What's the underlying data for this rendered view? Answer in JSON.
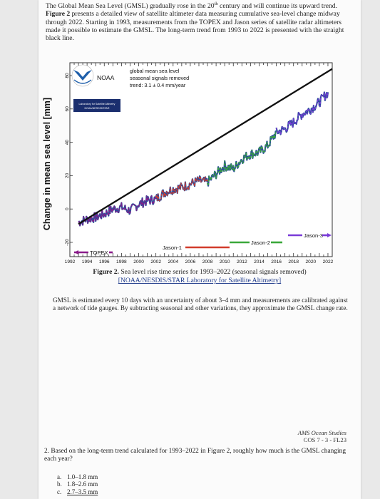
{
  "intro": {
    "p1": "The Global Mean Sea Level (GMSL) gradually rose in the 20",
    "p1_sup": "th",
    "p1_tail": " century and will continue its upward trend. ",
    "fig_ref": "Figure 2",
    "p2": " presents a detailed view of satellite altimeter data measuring cumulative sea-level change midway through 2022. Starting in 1993, measurements from the TOPEX and Jason series of satellite radar altimeters made it possible to estimate the GMSL. The long-term trend from 1993 to 2022 is presented with the straight black line."
  },
  "chart": {
    "ylabel": "Change in mean sea level [mm]",
    "y_ticks": [
      "80",
      "60",
      "40",
      "20",
      "0",
      "-20"
    ],
    "x_ticks": [
      "1992",
      "1994",
      "1996",
      "1998",
      "2000",
      "2002",
      "2004",
      "2006",
      "2008",
      "2010",
      "2012",
      "2014",
      "2016",
      "2018",
      "2020",
      "2022"
    ],
    "noaa_label": "NOAA",
    "star_badge_line1": "Laboratory for Satellite Altimetry",
    "star_badge_line2": "NOAA/NESDIS/STAR",
    "legend_line1": "global mean sea level",
    "legend_line2": "seasonal signals removed",
    "legend_line3": "trend: 3.1 ± 0.4 mm/year",
    "missions": {
      "topex": "TOPEX",
      "jason1": "Jason-1",
      "jason2": "Jason-2",
      "jason3": "Jason-3"
    },
    "colors": {
      "topex": "#8a1c8a",
      "jason1": "#d23c2c",
      "jason2": "#3aa83a",
      "jason3": "#7a3cd8",
      "trend": "#111111",
      "series": "#2b4c9a"
    }
  },
  "chart_data": {
    "type": "line",
    "x_range": [
      1992,
      2022.5
    ],
    "y_range": [
      -20,
      80
    ],
    "trend": {
      "x": [
        1993,
        2022.5
      ],
      "y": [
        -9,
        84
      ]
    },
    "series": [
      {
        "name": "TOPEX",
        "x": [
          1993,
          1994,
          1995,
          1996,
          1997,
          1998,
          1999,
          2000,
          2001,
          2002
        ],
        "y": [
          -8,
          -6,
          -5,
          -3,
          0,
          1,
          -1,
          3,
          5,
          6
        ]
      },
      {
        "name": "Jason-1",
        "x": [
          2002,
          2003,
          2004,
          2005,
          2006,
          2007,
          2008
        ],
        "y": [
          6,
          10,
          12,
          13,
          15,
          17,
          16
        ]
      },
      {
        "name": "Jason-2",
        "x": [
          2008,
          2009,
          2010,
          2011,
          2012,
          2013,
          2014,
          2015,
          2016
        ],
        "y": [
          16,
          21,
          26,
          24,
          30,
          33,
          34,
          38,
          46
        ]
      },
      {
        "name": "Jason-3",
        "x": [
          2016,
          2017,
          2018,
          2019,
          2020,
          2021,
          2022
        ],
        "y": [
          46,
          48,
          52,
          57,
          60,
          64,
          70
        ]
      }
    ]
  },
  "caption": {
    "fig_label": "Figure 2.",
    "text": " Sea level rise time series for 1993–2022 (seasonal signals removed)",
    "link": "[NOAA/NESDIS/STAR Laboratory for Satellite Altimetry]"
  },
  "para2": "GMSL is estimated every 10 days with an uncertainty of about 3–4 mm and measurements are calibrated against a network of tide gauges. By subtracting seasonal and other variations, they approximate the GMSL change rate.",
  "source": {
    "line1": "AMS Ocean Studies",
    "line2": "COS 7 - 3 - FL23"
  },
  "question": {
    "text": "2.  Based on the long-term trend calculated for 1993–2022 in Figure 2, roughly how much is the GMSL changing each year?",
    "options": [
      {
        "key": "a.",
        "text": "1.0–1.8 mm"
      },
      {
        "key": "b.",
        "text": "1.8–2.6 mm"
      },
      {
        "key": "c.",
        "text": "2.7–3.5 mm"
      }
    ]
  }
}
